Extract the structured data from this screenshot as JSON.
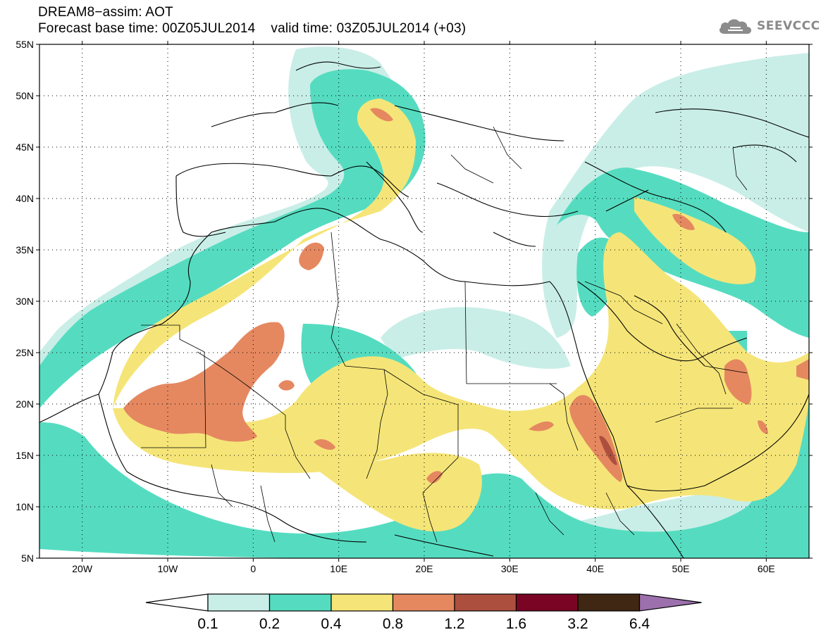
{
  "title": {
    "line1": "DREAM8−assim: AOT",
    "base": "Forecast base time: 00Z05JUL2014",
    "valid": "valid time: 03Z05JUL2014 (+03)"
  },
  "logo": {
    "text": "SEEVCCC",
    "icon": "cloud-icon"
  },
  "map": {
    "lon_range": [
      -25,
      65
    ],
    "lat_range": [
      5,
      55
    ],
    "lat_ticks": [
      "55N",
      "50N",
      "45N",
      "40N",
      "35N",
      "30N",
      "25N",
      "20N",
      "15N",
      "10N",
      "5N"
    ],
    "lon_ticks": [
      "20W",
      "10W",
      "0",
      "10E",
      "20E",
      "30E",
      "40E",
      "50E",
      "60E"
    ],
    "grid": "dotted"
  },
  "legend": {
    "levels": [
      "0.1",
      "0.2",
      "0.4",
      "0.8",
      "1.2",
      "1.6",
      "3.2",
      "6.4"
    ],
    "colors": [
      "#ffffff",
      "#c9eee7",
      "#55dcc0",
      "#f5e578",
      "#e58860",
      "#ad4f3e",
      "#7a0424",
      "#3f2713",
      "#9c70ad"
    ]
  }
}
